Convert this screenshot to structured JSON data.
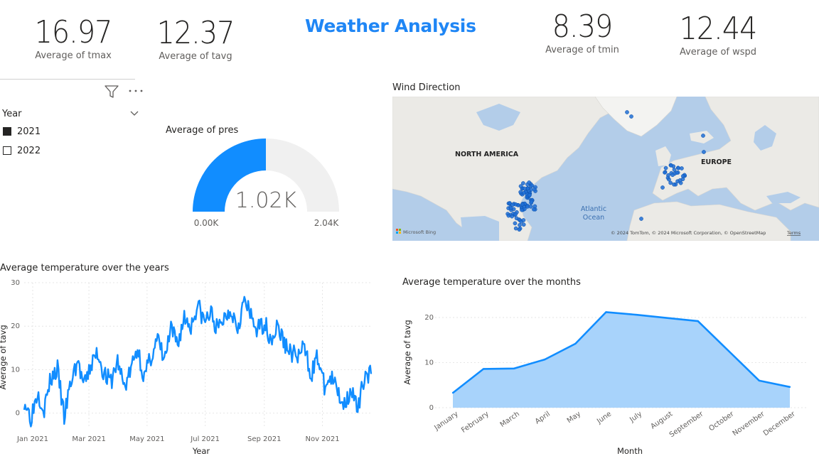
{
  "title": "Weather Analysis",
  "kpis": [
    {
      "value": "16.97",
      "label": "Average of tmax"
    },
    {
      "value": "12.37",
      "label": "Average of tavg"
    },
    {
      "value": "8.39",
      "label": "Average of tmin"
    },
    {
      "value": "12.44",
      "label": "Average of wspd"
    }
  ],
  "slicer": {
    "title": "Year",
    "items": [
      {
        "label": "2021",
        "checked": true
      },
      {
        "label": "2022",
        "checked": false
      }
    ]
  },
  "gauge": {
    "title": "Average of pres",
    "value_label": "1.02K",
    "min_label": "0.00K",
    "max_label": "2.04K",
    "value": 1.02,
    "min": 0,
    "max": 2.04,
    "fill_color": "#118dff",
    "track_color": "#f0f0f0"
  },
  "map": {
    "title": "Wind Direction",
    "labels": {
      "north_america": "NORTH AMERICA",
      "europe": "EUROPE",
      "ocean_line1": "Atlantic",
      "ocean_line2": "Ocean"
    },
    "logo": "Microsoft Bing",
    "attribution": "© 2024 TomTom, © 2024 Microsoft Corporation, © OpenStreetMap",
    "terms": "Terms",
    "dot_color": "#1f6fd6"
  },
  "chart_data": [
    {
      "type": "line",
      "title": "Average temperature over the years",
      "xlabel": "Year",
      "ylabel": "Average of tavg",
      "x_tick_labels": [
        "Jan 2021",
        "Mar 2021",
        "May 2021",
        "Jul 2021",
        "Sep 2021",
        "Nov 2021"
      ],
      "ylim": [
        -3,
        30
      ],
      "y_ticks": [
        0,
        10,
        20,
        30
      ],
      "grid": true,
      "color": "#118dff",
      "x_start": "2021-01-01",
      "x_end": "2021-12-31",
      "y_anchors": [
        [
          "2021-01-01",
          3
        ],
        [
          "2021-01-08",
          -1
        ],
        [
          "2021-01-15",
          5
        ],
        [
          "2021-01-22",
          1
        ],
        [
          "2021-01-29",
          8
        ],
        [
          "2021-02-05",
          10
        ],
        [
          "2021-02-12",
          -1
        ],
        [
          "2021-02-19",
          7
        ],
        [
          "2021-02-26",
          12
        ],
        [
          "2021-03-05",
          6
        ],
        [
          "2021-03-12",
          11
        ],
        [
          "2021-03-19",
          14
        ],
        [
          "2021-03-26",
          9
        ],
        [
          "2021-04-02",
          7
        ],
        [
          "2021-04-09",
          12
        ],
        [
          "2021-04-16",
          6
        ],
        [
          "2021-04-23",
          10
        ],
        [
          "2021-04-30",
          15
        ],
        [
          "2021-05-07",
          8
        ],
        [
          "2021-05-14",
          13
        ],
        [
          "2021-05-21",
          17
        ],
        [
          "2021-05-28",
          12
        ],
        [
          "2021-06-04",
          19
        ],
        [
          "2021-06-11",
          16
        ],
        [
          "2021-06-18",
          22
        ],
        [
          "2021-06-25",
          20
        ],
        [
          "2021-07-02",
          25
        ],
        [
          "2021-07-09",
          21
        ],
        [
          "2021-07-16",
          23
        ],
        [
          "2021-07-23",
          19
        ],
        [
          "2021-07-30",
          22
        ],
        [
          "2021-08-06",
          24
        ],
        [
          "2021-08-13",
          20
        ],
        [
          "2021-08-20",
          26
        ],
        [
          "2021-08-27",
          22
        ],
        [
          "2021-09-03",
          19
        ],
        [
          "2021-09-10",
          21
        ],
        [
          "2021-09-17",
          17
        ],
        [
          "2021-09-24",
          20
        ],
        [
          "2021-10-01",
          16
        ],
        [
          "2021-10-08",
          14
        ],
        [
          "2021-10-15",
          13
        ],
        [
          "2021-10-22",
          15
        ],
        [
          "2021-10-29",
          9
        ],
        [
          "2021-11-05",
          13
        ],
        [
          "2021-11-12",
          6
        ],
        [
          "2021-11-19",
          8
        ],
        [
          "2021-11-26",
          5
        ],
        [
          "2021-12-03",
          2
        ],
        [
          "2021-12-10",
          6
        ],
        [
          "2021-12-17",
          0
        ],
        [
          "2021-12-24",
          9
        ],
        [
          "2021-12-31",
          9
        ]
      ]
    },
    {
      "type": "area",
      "title": "Average temperature over the months",
      "xlabel": "Month",
      "ylabel": "Average of tavg",
      "categories": [
        "January",
        "February",
        "March",
        "April",
        "May",
        "June",
        "July",
        "August",
        "September",
        "October",
        "November",
        "December"
      ],
      "values": [
        3.3,
        8.6,
        8.7,
        10.7,
        14.2,
        21.2,
        20.6,
        19.9,
        19.2,
        12.6,
        6.0,
        4.6
      ],
      "ylim": [
        0,
        23
      ],
      "y_ticks": [
        0,
        10,
        20
      ],
      "grid": true,
      "color": "#118dff",
      "fill_color": "#a8d3fb"
    }
  ]
}
